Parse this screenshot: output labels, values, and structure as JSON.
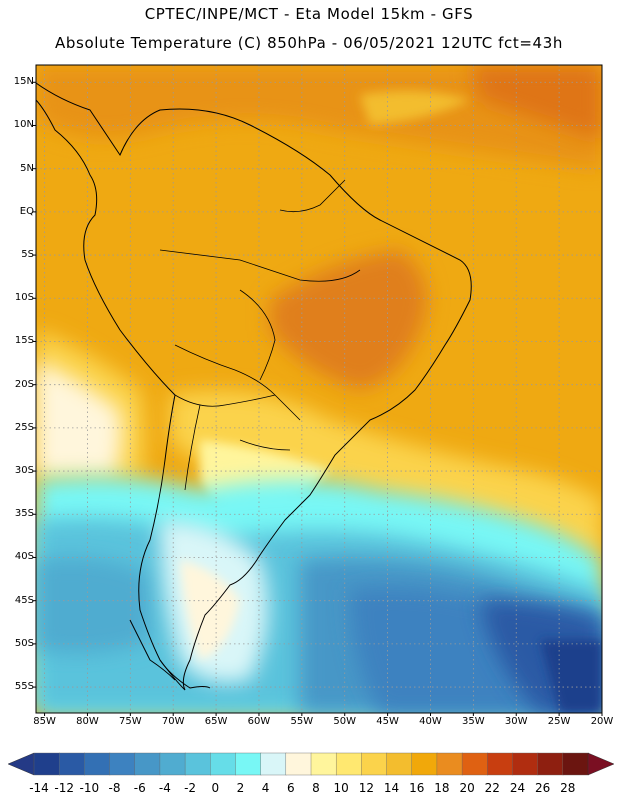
{
  "header": {
    "line1": "CPTEC/INPE/MCT -  Eta Model 15km - GFS",
    "line2": "Absolute Temperature (C) 850hPa - 06/05/2021 12UTC fct=43h"
  },
  "map": {
    "lat_labels": [
      "15N",
      "10N",
      "5N",
      "EQ",
      "5S",
      "10S",
      "15S",
      "20S",
      "25S",
      "30S",
      "35S",
      "40S",
      "45S",
      "50S",
      "55S"
    ],
    "lat_values": [
      15,
      10,
      5,
      0,
      -5,
      -10,
      -15,
      -20,
      -25,
      -30,
      -35,
      -40,
      -45,
      -50,
      -55
    ],
    "lon_labels": [
      "85W",
      "80W",
      "75W",
      "70W",
      "65W",
      "60W",
      "55W",
      "50W",
      "45W",
      "40W",
      "35W",
      "30W",
      "25W",
      "20W"
    ],
    "lon_values": [
      -85,
      -80,
      -75,
      -70,
      -65,
      -60,
      -55,
      -50,
      -45,
      -40,
      -35,
      -30,
      -25,
      -20
    ],
    "lat_range": [
      -58,
      17
    ],
    "lon_range": [
      -86,
      -20
    ]
  },
  "colorbar": {
    "labels": [
      "-14",
      "-12",
      "-10",
      "-8",
      "-6",
      "-4",
      "-2",
      "0",
      "2",
      "4",
      "6",
      "8",
      "10",
      "12",
      "14",
      "16",
      "18",
      "20",
      "22",
      "24",
      "26",
      "28"
    ],
    "colors": [
      "#1f3f8c",
      "#2a5aa5",
      "#3370b4",
      "#3d82c0",
      "#4797c7",
      "#50acd0",
      "#5ac3dc",
      "#66dde8",
      "#78f7f5",
      "#d9f6f8",
      "#fff6dc",
      "#fff59c",
      "#ffe870",
      "#fbd34b",
      "#f3bd2e",
      "#f1a80a",
      "#ea8c1f",
      "#df6112",
      "#c83e10",
      "#b02d10",
      "#8e1f10",
      "#6b1510"
    ],
    "under_color": "#243a86",
    "over_color": "#7a0f22"
  }
}
